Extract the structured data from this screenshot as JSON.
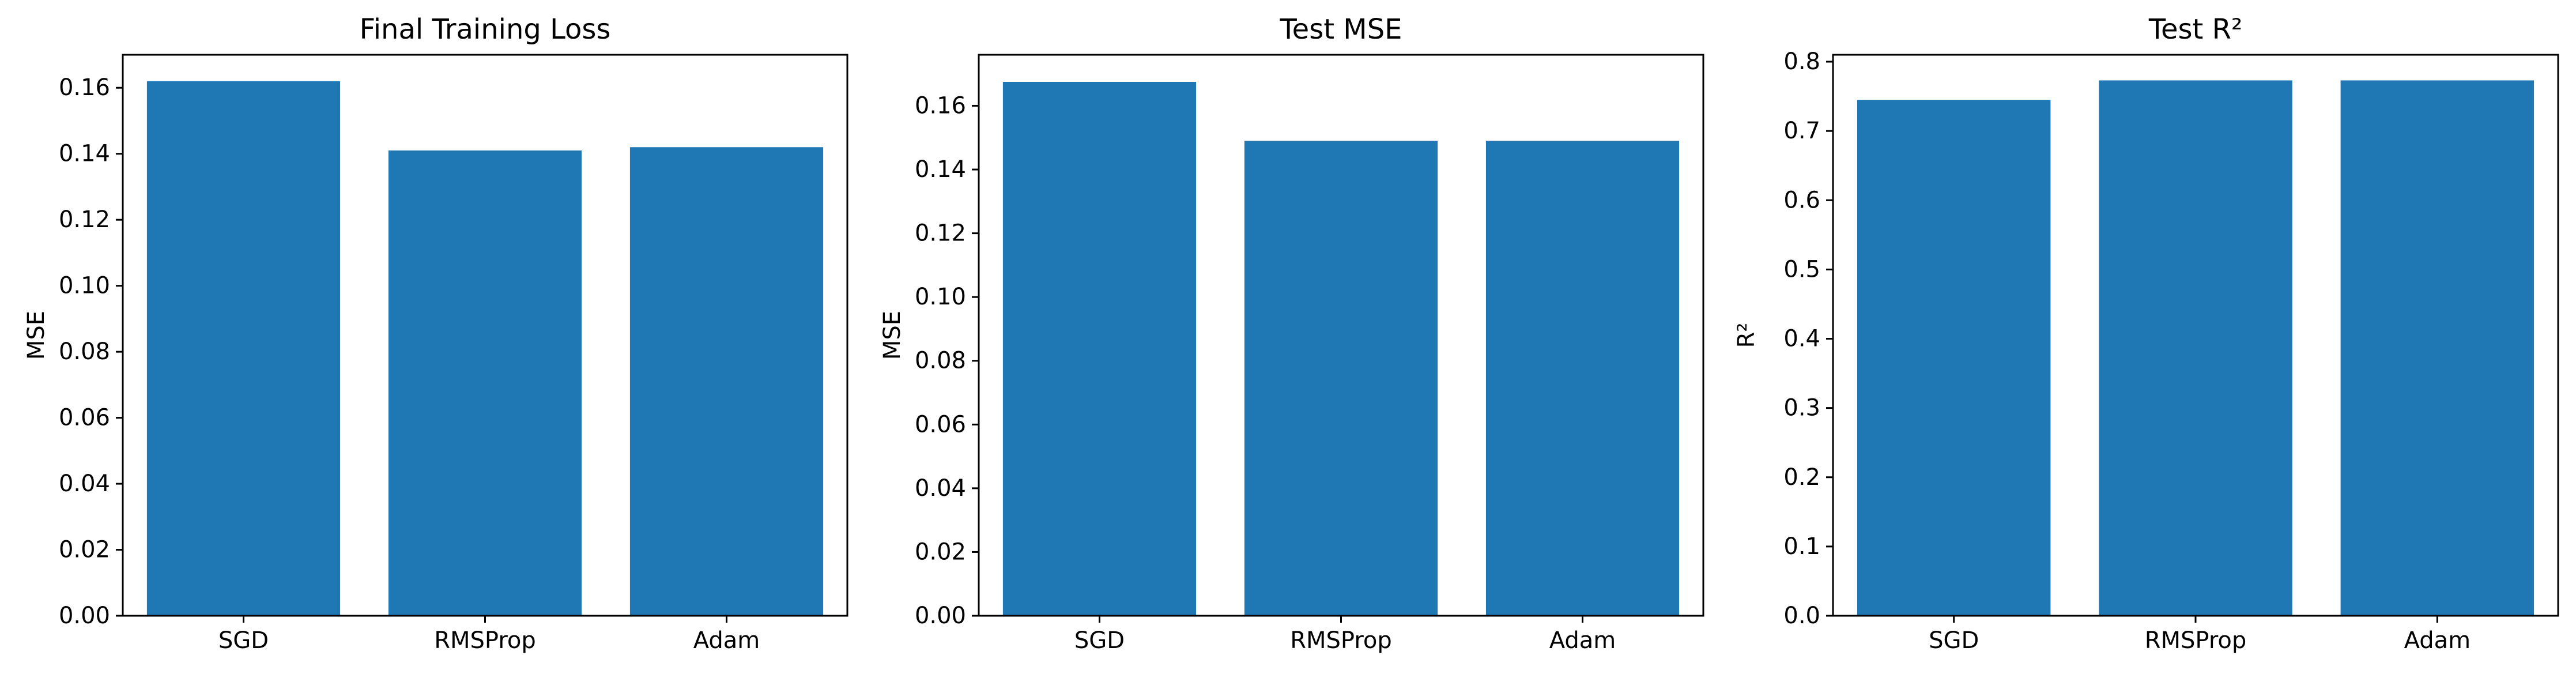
{
  "figure": {
    "background": "#ffffff",
    "bar_color": "#1f77b4"
  },
  "chart_data": [
    {
      "type": "bar",
      "title": "Final Training Loss",
      "xlabel": "",
      "ylabel": "MSE",
      "categories": [
        "SGD",
        "RMSProp",
        "Adam"
      ],
      "values": [
        0.162,
        0.141,
        0.142
      ],
      "ylim": [
        0,
        0.17
      ],
      "yticks": [
        0,
        0.02,
        0.04,
        0.06,
        0.08,
        0.1,
        0.12,
        0.14,
        0.16
      ],
      "ytick_labels": [
        "0.00",
        "0.02",
        "0.04",
        "0.06",
        "0.08",
        "0.10",
        "0.12",
        "0.14",
        "0.16"
      ],
      "grid": false,
      "legend": false
    },
    {
      "type": "bar",
      "title": "Test MSE",
      "xlabel": "",
      "ylabel": "MSE",
      "categories": [
        "SGD",
        "RMSProp",
        "Adam"
      ],
      "values": [
        0.1675,
        0.149,
        0.149
      ],
      "ylim": [
        0,
        0.176
      ],
      "yticks": [
        0,
        0.02,
        0.04,
        0.06,
        0.08,
        0.1,
        0.12,
        0.14,
        0.16
      ],
      "ytick_labels": [
        "0.00",
        "0.02",
        "0.04",
        "0.06",
        "0.08",
        "0.10",
        "0.12",
        "0.14",
        "0.16"
      ],
      "grid": false,
      "legend": false
    },
    {
      "type": "bar",
      "title": "Test R²",
      "xlabel": "",
      "ylabel": "R²",
      "categories": [
        "SGD",
        "RMSProp",
        "Adam"
      ],
      "values": [
        0.745,
        0.773,
        0.773
      ],
      "ylim": [
        0,
        0.81
      ],
      "yticks": [
        0,
        0.1,
        0.2,
        0.3,
        0.4,
        0.5,
        0.6,
        0.7,
        0.8
      ],
      "ytick_labels": [
        "0.0",
        "0.1",
        "0.2",
        "0.3",
        "0.4",
        "0.5",
        "0.6",
        "0.7",
        "0.8"
      ],
      "grid": false,
      "legend": false
    }
  ]
}
